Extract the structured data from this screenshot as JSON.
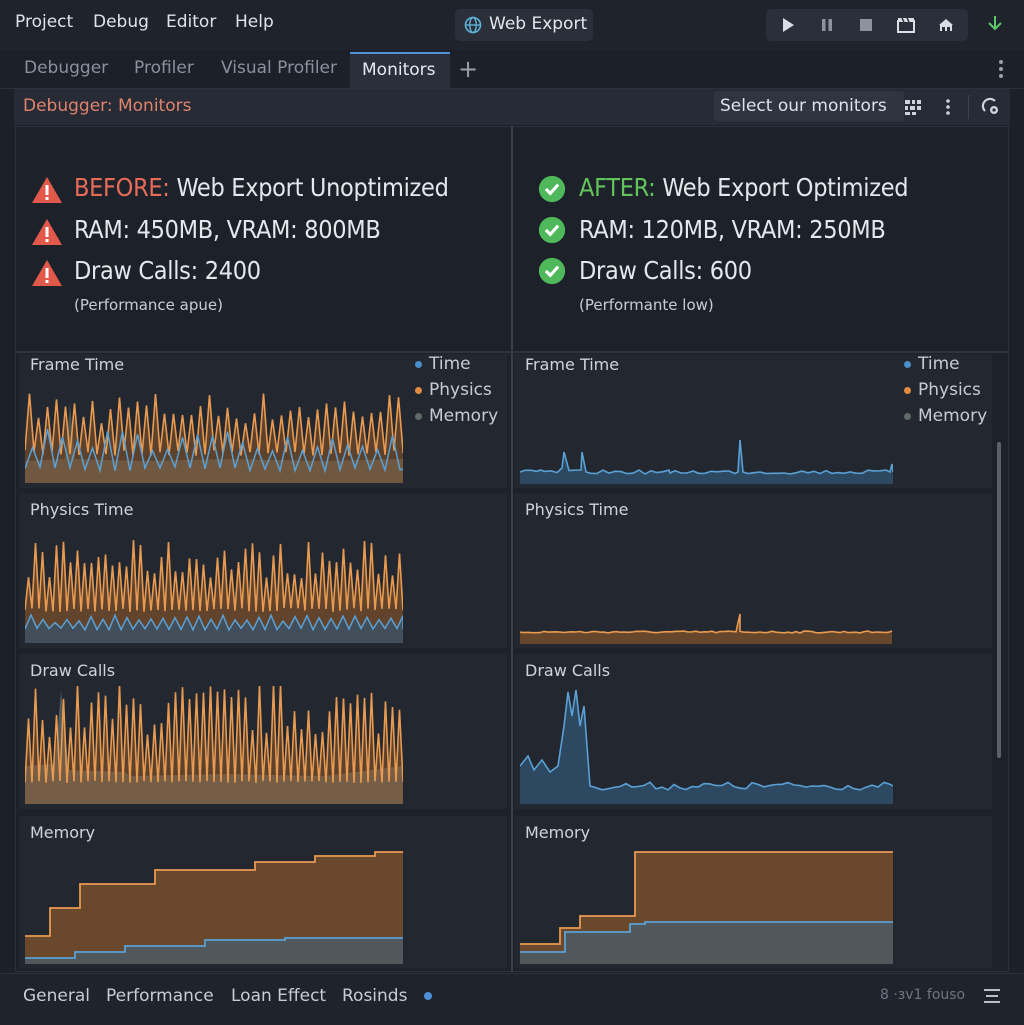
{
  "menu": {
    "items": [
      "Project",
      "Debug",
      "Editor",
      "Help"
    ],
    "export_button": "Web Export",
    "run_controls": [
      "play-icon",
      "pause-icon",
      "stop-icon",
      "movie-icon",
      "remote-debug-icon"
    ],
    "deploy_icon": "download-arrow-icon"
  },
  "tabs": {
    "items": [
      "Debugger",
      "Profiler",
      "Visual Profiler",
      "Monitors"
    ],
    "active": "Monitors",
    "add_label": "+"
  },
  "subheader": {
    "title": "Debugger: Monitors",
    "select_label": "Select our monitors"
  },
  "before": {
    "keyword": "BEFORE:",
    "title": "Web Export Unoptimized",
    "ram_line": "RAM: 450MB, VRAM: 800MB",
    "draw_line": "Draw Calls: 2400",
    "note": "(Performance apue)"
  },
  "after": {
    "keyword": "AFTER:",
    "title": "Web Export Optimized",
    "ram_line": "RAM: 120MB, VRAM: 250MB",
    "draw_line": "Draw Calls: 600",
    "note": "(Performante low)"
  },
  "legend": {
    "items": [
      {
        "label": "Time",
        "color": "#4a90c8"
      },
      {
        "label": "Physics",
        "color": "#e08a42"
      },
      {
        "label": "Memory",
        "color": "#5f6b66"
      }
    ]
  },
  "graphs": {
    "titles": [
      "Frame Time",
      "Physics Time",
      "Draw Calls",
      "Memory"
    ]
  },
  "statusbar": {
    "tabs": [
      "General",
      "Performance",
      "Loan Effect",
      "Rosinds"
    ],
    "version": "8 ·ɜv1 fouso"
  },
  "colors": {
    "orange": "#e08a42",
    "blue": "#4a90c8",
    "before_red": "#e86b5a",
    "after_green": "#62c45a",
    "accent": "#4f8fd6"
  }
}
